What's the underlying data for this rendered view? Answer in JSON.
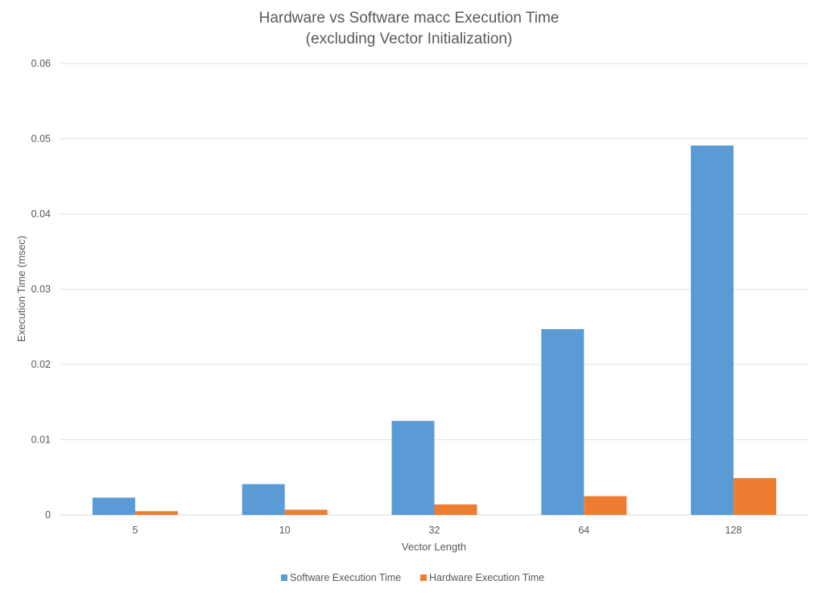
{
  "chart_data": {
    "type": "bar",
    "title": "Hardware vs Software macc Execution Time",
    "subtitle": "(excluding Vector Initialization)",
    "xlabel": "Vector Length",
    "ylabel": "Execution Time (msec)",
    "categories": [
      "5",
      "10",
      "32",
      "64",
      "128"
    ],
    "series": [
      {
        "name": "Software Execution Time",
        "color": "#5b9bd5",
        "values": [
          0.0023,
          0.0041,
          0.0125,
          0.0247,
          0.0491
        ]
      },
      {
        "name": "Hardware Execution Time",
        "color": "#ed7d31",
        "values": [
          0.0005,
          0.0007,
          0.0014,
          0.0025,
          0.0049
        ]
      }
    ],
    "ylim": [
      0,
      0.06
    ],
    "yticks": [
      0,
      0.01,
      0.02,
      0.03,
      0.04,
      0.05,
      0.06
    ],
    "ytick_labels": [
      "0",
      "0.01",
      "0.02",
      "0.03",
      "0.04",
      "0.05",
      "0.06"
    ],
    "grid": true,
    "legend_position": "bottom"
  }
}
